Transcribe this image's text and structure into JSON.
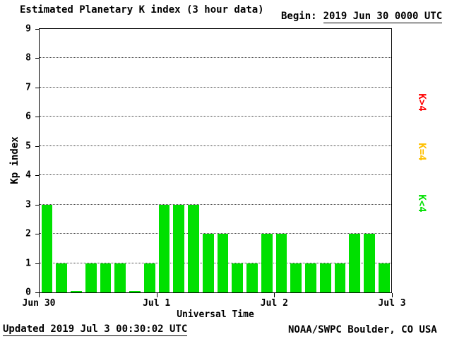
{
  "header": {
    "title": "Estimated Planetary K index (3 hour data)",
    "begin_label": "Begin:",
    "begin_value": "2019 Jun 30 0000 UTC"
  },
  "footer": {
    "updated": "Updated 2019 Jul 3 00:30:02 UTC",
    "source": "NOAA/SWPC Boulder, CO USA"
  },
  "chart_data": {
    "type": "bar",
    "title": "Estimated Planetary K index (3 hour data)",
    "begin": "2019 Jun 30 0000 UTC",
    "xlabel": "Universal Time",
    "ylabel": "Kp index",
    "ylim": [
      0,
      9
    ],
    "y_ticks": [
      0,
      1,
      2,
      3,
      4,
      5,
      6,
      7,
      8,
      9
    ],
    "x_tick_labels": [
      "Jun 30",
      "Jul 1",
      "Jul 2",
      "Jul 3"
    ],
    "bin_hours": 3,
    "values": [
      3,
      1,
      0,
      1,
      1,
      1,
      0,
      1,
      3,
      3,
      3,
      2,
      2,
      1,
      1,
      2,
      2,
      1,
      1,
      1,
      1,
      2,
      2,
      1
    ],
    "grid": "horizontal-dotted",
    "legend_position": "right-rotated",
    "legend": [
      {
        "label": "K>4",
        "color": "#ff0000"
      },
      {
        "label": "K=4",
        "color": "#ffc000"
      },
      {
        "label": "K<4",
        "color": "#00e000"
      }
    ],
    "bar_colors": {
      "lt4": "#00e000",
      "eq4": "#ffc000",
      "gt4": "#ff0000"
    }
  },
  "colors": {
    "background": "#ffffff",
    "axis": "#000000",
    "text": "#000000"
  }
}
